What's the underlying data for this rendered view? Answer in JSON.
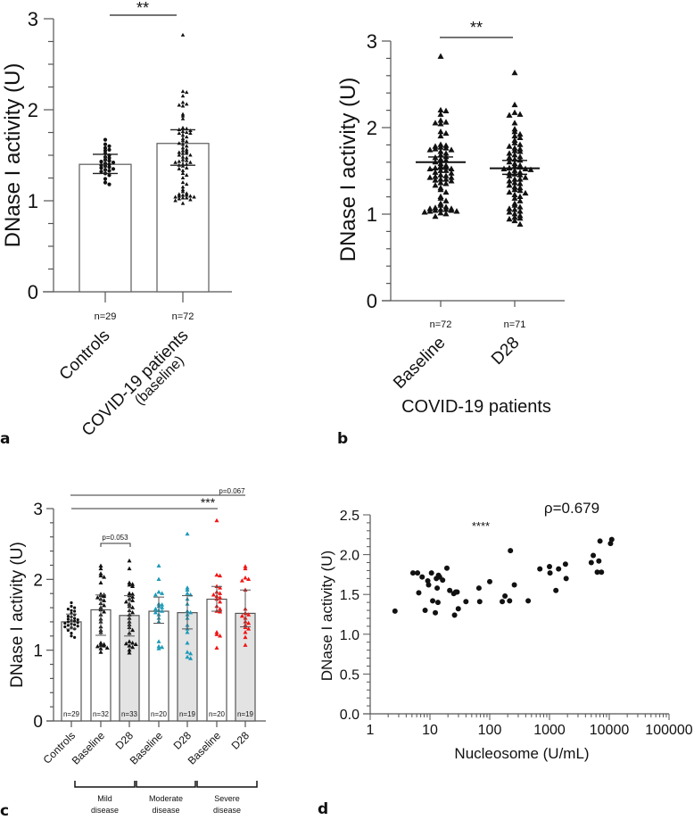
{
  "chart_data": [
    {
      "id": "a",
      "type": "bar",
      "panel_label": "a",
      "ylabel": "DNase I activity (U)",
      "ylim": [
        0,
        3
      ],
      "yticks": [
        "0",
        "1",
        "2",
        "3"
      ],
      "categories": [
        "Controls",
        "COVID-19 patients\n(baseline)"
      ],
      "category_lines": [
        [
          "Controls"
        ],
        [
          "COVID-19 patients",
          "(baseline)"
        ]
      ],
      "n_labels": [
        "n=29",
        "n=72"
      ],
      "values": [
        1.4,
        1.63
      ],
      "error_low": [
        1.3,
        1.39
      ],
      "error_high": [
        1.51,
        1.78
      ],
      "marker": [
        "circle",
        "triangle"
      ],
      "significance": [
        {
          "from": 0,
          "to": 1,
          "label": "**"
        }
      ],
      "points": [
        [
          1.67,
          1.62,
          1.6,
          1.58,
          1.56,
          1.55,
          1.52,
          1.5,
          1.48,
          1.47,
          1.45,
          1.44,
          1.43,
          1.42,
          1.41,
          1.4,
          1.39,
          1.38,
          1.37,
          1.36,
          1.35,
          1.34,
          1.33,
          1.32,
          1.3,
          1.28,
          1.24,
          1.2,
          1.18
        ],
        [
          2.82,
          2.2,
          2.19,
          2.15,
          2.08,
          2.06,
          2.05,
          2.04,
          1.95,
          1.93,
          1.9,
          1.8,
          1.79,
          1.78,
          1.77,
          1.76,
          1.75,
          1.74,
          1.74,
          1.72,
          1.7,
          1.68,
          1.66,
          1.65,
          1.63,
          1.62,
          1.6,
          1.58,
          1.56,
          1.55,
          1.54,
          1.53,
          1.52,
          1.52,
          1.5,
          1.5,
          1.48,
          1.47,
          1.45,
          1.44,
          1.43,
          1.42,
          1.42,
          1.4,
          1.4,
          1.39,
          1.38,
          1.36,
          1.35,
          1.33,
          1.3,
          1.28,
          1.25,
          1.2,
          1.18,
          1.15,
          1.12,
          1.1,
          1.08,
          1.07,
          1.06,
          1.06,
          1.05,
          1.05,
          1.04,
          1.04,
          1.03,
          1.03,
          1.02,
          1.01,
          1.0,
          0.97
        ]
      ]
    },
    {
      "id": "b",
      "type": "scatter",
      "panel_label": "b",
      "ylabel": "DNase I activity (U)",
      "xlabel": "COVID-19 patients",
      "ylim": [
        0,
        3
      ],
      "yticks": [
        "0",
        "1",
        "2",
        "3"
      ],
      "categories": [
        "Baseline",
        "D28"
      ],
      "n_labels": [
        "n=72",
        "n=71"
      ],
      "median": [
        1.6,
        1.53
      ],
      "error_low": [
        1.52,
        1.46
      ],
      "error_high": [
        1.66,
        1.62
      ],
      "significance": [
        {
          "from": 0,
          "to": 1,
          "label": "**"
        }
      ],
      "points": [
        [
          2.82,
          2.2,
          2.19,
          2.15,
          2.08,
          2.06,
          2.05,
          2.04,
          1.95,
          1.93,
          1.9,
          1.8,
          1.79,
          1.78,
          1.77,
          1.76,
          1.75,
          1.74,
          1.74,
          1.72,
          1.7,
          1.68,
          1.66,
          1.65,
          1.63,
          1.62,
          1.6,
          1.58,
          1.56,
          1.55,
          1.54,
          1.53,
          1.52,
          1.52,
          1.5,
          1.5,
          1.48,
          1.47,
          1.45,
          1.44,
          1.43,
          1.42,
          1.42,
          1.4,
          1.4,
          1.39,
          1.38,
          1.36,
          1.35,
          1.33,
          1.3,
          1.28,
          1.25,
          1.2,
          1.18,
          1.15,
          1.12,
          1.1,
          1.08,
          1.07,
          1.06,
          1.06,
          1.05,
          1.05,
          1.04,
          1.04,
          1.03,
          1.03,
          1.02,
          1.01,
          1.0,
          0.97
        ],
        [
          2.63,
          2.26,
          2.17,
          2.15,
          2.14,
          2.05,
          1.98,
          1.95,
          1.92,
          1.9,
          1.88,
          1.85,
          1.82,
          1.8,
          1.78,
          1.76,
          1.75,
          1.73,
          1.72,
          1.7,
          1.68,
          1.66,
          1.65,
          1.63,
          1.62,
          1.6,
          1.58,
          1.56,
          1.55,
          1.54,
          1.53,
          1.52,
          1.52,
          1.51,
          1.5,
          1.48,
          1.47,
          1.46,
          1.45,
          1.44,
          1.42,
          1.4,
          1.4,
          1.38,
          1.36,
          1.35,
          1.33,
          1.31,
          1.3,
          1.28,
          1.27,
          1.25,
          1.24,
          1.22,
          1.2,
          1.18,
          1.15,
          1.12,
          1.1,
          1.08,
          1.06,
          1.05,
          1.03,
          1.02,
          1.0,
          0.98,
          0.96,
          0.95,
          0.94,
          0.92,
          0.88
        ]
      ]
    },
    {
      "id": "c",
      "type": "bar",
      "panel_label": "c",
      "ylabel": "DNase I activity (U)",
      "ylim": [
        0,
        3
      ],
      "yticks": [
        "0",
        "1",
        "2",
        "3"
      ],
      "categories": [
        "Controls",
        "Baseline",
        "D28",
        "Baseline",
        "D28",
        "Baseline",
        "D28"
      ],
      "n_labels": [
        "n=29",
        "n=32",
        "n=33",
        "n=20",
        "n=19",
        "n=20",
        "n=19"
      ],
      "values": [
        1.4,
        1.57,
        1.49,
        1.55,
        1.53,
        1.72,
        1.52
      ],
      "error_low": [
        1.3,
        1.21,
        1.2,
        1.38,
        1.3,
        1.55,
        1.33
      ],
      "error_high": [
        1.51,
        1.78,
        1.77,
        1.75,
        1.77,
        1.9,
        1.85
      ],
      "bar_fill": [
        "#ffffff",
        "#ffffff",
        "#e3e3e3",
        "#ffffff",
        "#e3e3e3",
        "#ffffff",
        "#e3e3e3"
      ],
      "marker_color": [
        "#111111",
        "#111111",
        "#111111",
        "#1e9ab8",
        "#1e9ab8",
        "#f01515",
        "#f01515"
      ],
      "marker": [
        "circle",
        "triangle",
        "triangle",
        "triangle",
        "triangle",
        "triangle",
        "triangle"
      ],
      "groups": [
        {
          "label_lines": [
            "Mild",
            "disease"
          ],
          "from": 1,
          "to": 2,
          "color": "#111111"
        },
        {
          "label_lines": [
            "Moderate",
            "disease"
          ],
          "from": 3,
          "to": 4,
          "color": "#1e9ab8"
        },
        {
          "label_lines": [
            "Severe",
            "disease"
          ],
          "from": 5,
          "to": 6,
          "color": "#f01515"
        }
      ],
      "annotations": [
        {
          "from": 1,
          "to": 2,
          "label": "p=0.053",
          "style": "bracket"
        },
        {
          "from": 0,
          "to": 5,
          "label": "***",
          "style": "line"
        },
        {
          "from": 0,
          "to": 6,
          "label": "p=0.067",
          "style": "line"
        }
      ],
      "points": [
        [
          1.67,
          1.62,
          1.6,
          1.58,
          1.56,
          1.55,
          1.52,
          1.5,
          1.48,
          1.47,
          1.45,
          1.44,
          1.43,
          1.42,
          1.41,
          1.4,
          1.39,
          1.38,
          1.37,
          1.36,
          1.35,
          1.34,
          1.33,
          1.32,
          1.3,
          1.28,
          1.24,
          1.2,
          1.18
        ],
        [
          2.19,
          2.15,
          2.08,
          2.05,
          2.03,
          1.95,
          1.79,
          1.78,
          1.77,
          1.76,
          1.74,
          1.72,
          1.7,
          1.66,
          1.63,
          1.6,
          1.57,
          1.54,
          1.5,
          1.44,
          1.4,
          1.33,
          1.28,
          1.25,
          1.1,
          1.08,
          1.07,
          1.06,
          1.05,
          1.03,
          1.02,
          0.97
        ],
        [
          2.26,
          2.15,
          1.95,
          1.93,
          1.92,
          1.9,
          1.8,
          1.79,
          1.77,
          1.75,
          1.72,
          1.7,
          1.68,
          1.65,
          1.62,
          1.6,
          1.56,
          1.53,
          1.5,
          1.45,
          1.4,
          1.36,
          1.32,
          1.28,
          1.24,
          1.12,
          1.1,
          1.09,
          1.08,
          1.06,
          1.04,
          1.0,
          0.96
        ],
        [
          2.19,
          2.0,
          1.82,
          1.8,
          1.78,
          1.65,
          1.64,
          1.62,
          1.6,
          1.58,
          1.56,
          1.55,
          1.53,
          1.5,
          1.45,
          1.4,
          1.12,
          1.05,
          1.04,
          1.02
        ],
        [
          2.64,
          1.88,
          1.85,
          1.8,
          1.78,
          1.72,
          1.65,
          1.55,
          1.53,
          1.5,
          1.45,
          1.35,
          1.3,
          1.25,
          1.1,
          0.97,
          0.95,
          0.9,
          0.88
        ],
        [
          2.83,
          2.06,
          2.05,
          1.9,
          1.88,
          1.82,
          1.8,
          1.78,
          1.76,
          1.74,
          1.72,
          1.68,
          1.62,
          1.58,
          1.55,
          1.54,
          1.25,
          1.22,
          1.2,
          1.03
        ],
        [
          2.18,
          2.15,
          2.02,
          2.0,
          1.98,
          1.85,
          1.58,
          1.52,
          1.5,
          1.48,
          1.45,
          1.4,
          1.38,
          1.35,
          1.32,
          1.3,
          1.25,
          1.18,
          1.07
        ]
      ]
    },
    {
      "id": "d",
      "type": "scatter",
      "panel_label": "d",
      "xlabel": "Nucleosome (U/mL)",
      "ylabel": "DNase I activity (U)",
      "xscale": "log",
      "xlim": [
        1,
        100000
      ],
      "ylim": [
        0,
        2.5
      ],
      "xticks": [
        "1",
        "10",
        "100",
        "1000",
        "10000",
        "100000"
      ],
      "yticks": [
        "0.0",
        "0.5",
        "1.0",
        "1.5",
        "2.0",
        "2.5"
      ],
      "annotation_rho": "ρ=0.679",
      "annotation_sig": "****",
      "points": [
        [
          2.6,
          1.29
        ],
        [
          5.2,
          1.77
        ],
        [
          6.2,
          1.77
        ],
        [
          6.5,
          1.52
        ],
        [
          7.4,
          1.72
        ],
        [
          8.3,
          1.3
        ],
        [
          9.2,
          1.67
        ],
        [
          9.5,
          1.62
        ],
        [
          10.6,
          1.77
        ],
        [
          11.1,
          1.42
        ],
        [
          12.3,
          1.27
        ],
        [
          12.8,
          1.7
        ],
        [
          13.2,
          1.58
        ],
        [
          13.6,
          1.4
        ],
        [
          13.9,
          1.74
        ],
        [
          14.5,
          1.72
        ],
        [
          16.3,
          1.68
        ],
        [
          19.2,
          1.83
        ],
        [
          21.4,
          1.55
        ],
        [
          25,
          1.51
        ],
        [
          25.8,
          1.24
        ],
        [
          27,
          1.53
        ],
        [
          28.5,
          1.53
        ],
        [
          29.8,
          1.32
        ],
        [
          40,
          1.41
        ],
        [
          66,
          1.58
        ],
        [
          68,
          1.41
        ],
        [
          100,
          1.66
        ],
        [
          162,
          1.41
        ],
        [
          180,
          1.48
        ],
        [
          215,
          1.42
        ],
        [
          222,
          2.05
        ],
        [
          258,
          1.62
        ],
        [
          440,
          1.42
        ],
        [
          690,
          1.82
        ],
        [
          1000,
          1.85
        ],
        [
          1020,
          1.77
        ],
        [
          1280,
          1.55
        ],
        [
          1420,
          1.82
        ],
        [
          1850,
          1.88
        ],
        [
          1900,
          1.7
        ],
        [
          5000,
          1.9
        ],
        [
          5400,
          1.99
        ],
        [
          6300,
          1.78
        ],
        [
          6700,
          1.92
        ],
        [
          7000,
          2.17
        ],
        [
          7400,
          1.78
        ],
        [
          10500,
          2.14
        ],
        [
          11000,
          2.19
        ]
      ]
    }
  ]
}
